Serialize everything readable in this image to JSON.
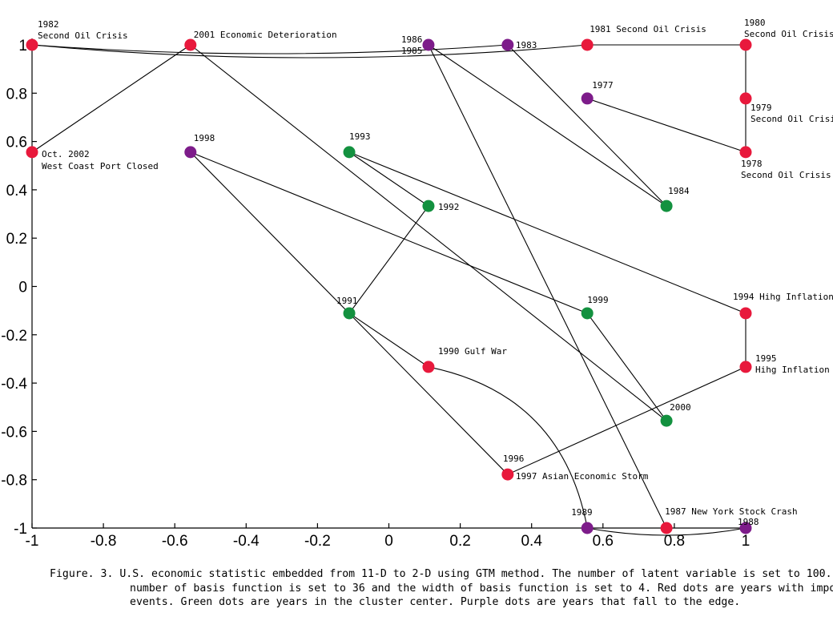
{
  "colors": {
    "red": "#e8193c",
    "green": "#13913f",
    "purple": "#7d1c8a"
  },
  "chart_data": {
    "type": "scatter",
    "xlim": [
      -1,
      1
    ],
    "ylim": [
      -1,
      1
    ],
    "x_ticks": [
      "-1",
      "-0.8",
      "-0.6",
      "-0.4",
      "-0.2",
      "0",
      "0.2",
      "0.4",
      "0.6",
      "0.8",
      "1"
    ],
    "y_ticks": [
      "1",
      "0.8",
      "0.6",
      "0.4",
      "0.2",
      "0",
      "-0.2",
      "-0.4",
      "-0.6",
      "-0.8",
      "-1"
    ],
    "grid": false,
    "legend": "none",
    "points": [
      {
        "id": "1977",
        "x": 0.556,
        "y": 0.778,
        "group": "purple",
        "label": [
          "1977"
        ]
      },
      {
        "id": "1978",
        "x": 1.0,
        "y": 0.556,
        "group": "red",
        "label": [
          "1978",
          "Second Oil Crisis"
        ]
      },
      {
        "id": "1979",
        "x": 1.0,
        "y": 0.778,
        "group": "red",
        "label": [
          "1979",
          "Second Oil Crisis"
        ]
      },
      {
        "id": "1980",
        "x": 1.0,
        "y": 1.0,
        "group": "red",
        "label": [
          "1980",
          "Second Oil Crisis"
        ]
      },
      {
        "id": "1981",
        "x": 0.556,
        "y": 1.0,
        "group": "red",
        "label": [
          "1981 Second Oil Crisis"
        ]
      },
      {
        "id": "1982",
        "x": -1.0,
        "y": 1.0,
        "group": "red",
        "label": [
          "1982",
          "Second Oil Crisis"
        ]
      },
      {
        "id": "1983",
        "x": 0.333,
        "y": 1.0,
        "group": "purple",
        "label": [
          "1983"
        ]
      },
      {
        "id": "1984",
        "x": 0.778,
        "y": 0.333,
        "group": "green",
        "label": [
          "1984"
        ]
      },
      {
        "id": "1985-1986",
        "x": 0.111,
        "y": 1.0,
        "group": "purple",
        "label": [
          "1986",
          "1985"
        ]
      },
      {
        "id": "1987",
        "x": 0.778,
        "y": -1.0,
        "group": "red",
        "label": [
          "1987 New York Stock Crash"
        ]
      },
      {
        "id": "1988",
        "x": 1.0,
        "y": -1.0,
        "group": "purple",
        "label": [
          "1988"
        ]
      },
      {
        "id": "1989",
        "x": 0.556,
        "y": -1.0,
        "group": "purple",
        "label": [
          "1989"
        ]
      },
      {
        "id": "1990",
        "x": 0.111,
        "y": -0.333,
        "group": "red",
        "label": [
          "1990 Gulf War"
        ]
      },
      {
        "id": "1991",
        "x": -0.111,
        "y": -0.111,
        "group": "green",
        "label": [
          "1991"
        ]
      },
      {
        "id": "1992",
        "x": 0.111,
        "y": 0.333,
        "group": "green",
        "label": [
          "1992"
        ]
      },
      {
        "id": "1993",
        "x": -0.111,
        "y": 0.556,
        "group": "green",
        "label": [
          "1993"
        ]
      },
      {
        "id": "1994",
        "x": 1.0,
        "y": -0.111,
        "group": "red",
        "label": [
          "1994 Hihg Inflation"
        ]
      },
      {
        "id": "1995",
        "x": 1.0,
        "y": -0.333,
        "group": "red",
        "label": [
          "1995",
          "Hihg Inflation"
        ]
      },
      {
        "id": "1996-1997",
        "x": 0.333,
        "y": -0.778,
        "group": "red",
        "label": [
          "1996",
          "1997 Asian Economic Storm"
        ]
      },
      {
        "id": "1998",
        "x": -0.556,
        "y": 0.556,
        "group": "purple",
        "label": [
          "1998"
        ]
      },
      {
        "id": "1999",
        "x": 0.556,
        "y": -0.111,
        "group": "green",
        "label": [
          "1999"
        ]
      },
      {
        "id": "2000",
        "x": 0.778,
        "y": -0.556,
        "group": "green",
        "label": [
          "2000"
        ]
      },
      {
        "id": "2001",
        "x": -0.556,
        "y": 1.0,
        "group": "red",
        "label": [
          "2001 Economic Deterioration"
        ]
      },
      {
        "id": "2002",
        "x": -1.0,
        "y": 0.556,
        "group": "red",
        "label": [
          "Oct. 2002",
          "West Coast Port Closed"
        ]
      }
    ],
    "links": [
      [
        "1977",
        "1978"
      ],
      [
        "1978",
        "1979"
      ],
      [
        "1979",
        "1980"
      ],
      [
        "1980",
        "1981"
      ],
      [
        "1981",
        "1982"
      ],
      [
        "1982",
        "1983"
      ],
      [
        "1983",
        "1984"
      ],
      [
        "1984",
        "1985-1986"
      ],
      [
        "1985-1986",
        "1987"
      ],
      [
        "1987",
        "1988"
      ],
      [
        "1988",
        "1989"
      ],
      [
        "1989",
        "1990"
      ],
      [
        "1990",
        "1991"
      ],
      [
        "1991",
        "1992"
      ],
      [
        "1992",
        "1993"
      ],
      [
        "1993",
        "1994"
      ],
      [
        "1994",
        "1995"
      ],
      [
        "1995",
        "1996-1997"
      ],
      [
        "1996-1997",
        "1998"
      ],
      [
        "1998",
        "1999"
      ],
      [
        "1999",
        "2000"
      ],
      [
        "2000",
        "2001"
      ],
      [
        "2001",
        "2002"
      ]
    ]
  },
  "caption": "Figure. 3. U.S. economic statistic embedded from 11-D to 2-D using GTM method. The number of latent variable is set to 100. The number of basis function is set to 36 and the width of basis function is set to 4. Red dots are years with important events. Green dots are years in the cluster center. Purple dots are years that fall to the edge."
}
